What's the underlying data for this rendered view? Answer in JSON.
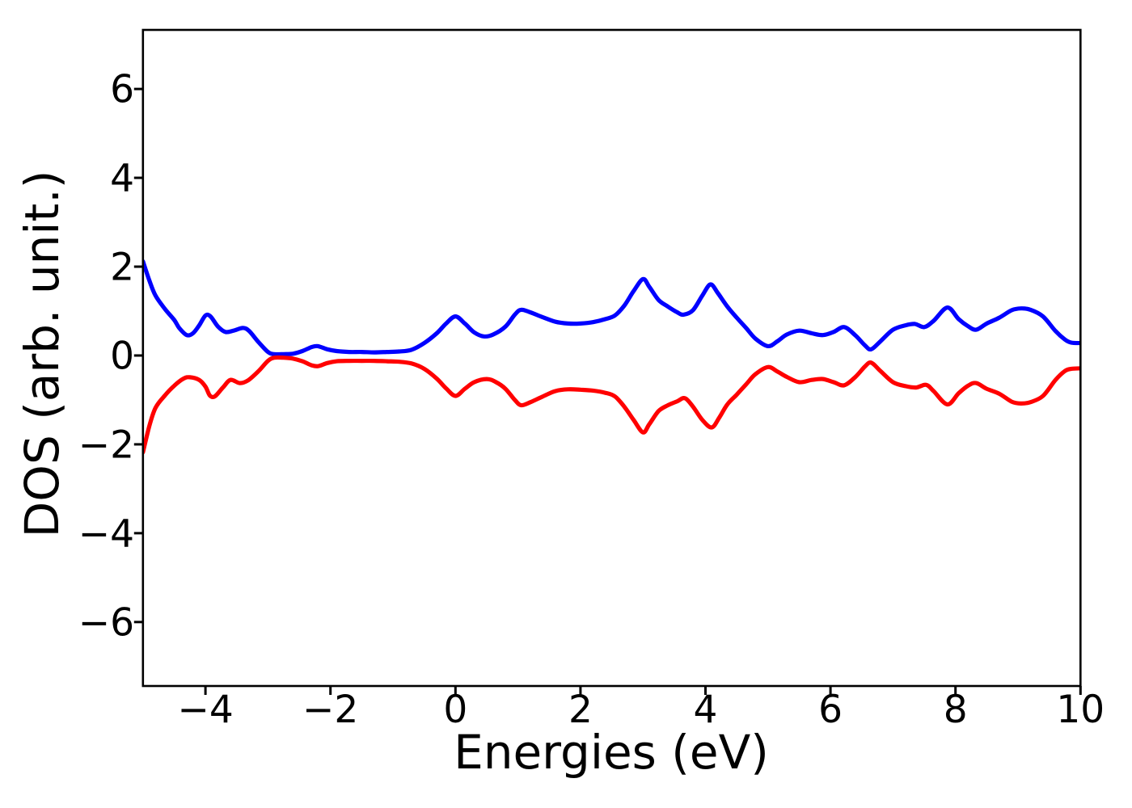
{
  "figure": {
    "background": "#ffffff",
    "spine_color": "#000000",
    "tick_color": "#000000",
    "text_color": "#000000"
  },
  "chart_data": {
    "type": "line",
    "title": "",
    "xlabel": "Energies (eV)",
    "ylabel": "DOS (arb. unit.)",
    "xlim": [
      -5,
      10
    ],
    "ylim": [
      -7.44,
      7.33
    ],
    "grid": false,
    "legend": "none",
    "x_ticks": {
      "values": [
        -4,
        -2,
        0,
        2,
        4,
        6,
        8,
        10
      ],
      "labels": [
        "−4",
        "−2",
        "0",
        "2",
        "4",
        "6",
        "8",
        "10"
      ]
    },
    "y_ticks": {
      "values": [
        -6,
        -4,
        -2,
        0,
        2,
        4,
        6
      ],
      "labels": [
        "−6",
        "−4",
        "−2",
        "0",
        "2",
        "4",
        "6"
      ]
    },
    "series": [
      {
        "name": "blue",
        "color": "#0000ff",
        "x": [
          -5.0,
          -4.9,
          -4.8,
          -4.65,
          -4.5,
          -4.42,
          -4.3,
          -4.2,
          -4.1,
          -4.0,
          -3.92,
          -3.8,
          -3.68,
          -3.55,
          -3.4,
          -3.3,
          -3.15,
          -3.0,
          -2.9,
          -2.75,
          -2.6,
          -2.45,
          -2.3,
          -2.2,
          -2.05,
          -1.9,
          -1.7,
          -1.5,
          -1.3,
          -1.1,
          -0.9,
          -0.7,
          -0.5,
          -0.3,
          -0.15,
          0.0,
          0.15,
          0.3,
          0.45,
          0.6,
          0.8,
          0.95,
          1.05,
          1.2,
          1.4,
          1.6,
          1.8,
          2.0,
          2.2,
          2.4,
          2.55,
          2.7,
          2.85,
          3.0,
          3.1,
          3.25,
          3.4,
          3.55,
          3.65,
          3.8,
          3.95,
          4.08,
          4.2,
          4.35,
          4.5,
          4.65,
          4.8,
          5.0,
          5.15,
          5.3,
          5.5,
          5.7,
          5.88,
          6.05,
          6.22,
          6.4,
          6.55,
          6.65,
          6.8,
          7.0,
          7.2,
          7.35,
          7.5,
          7.65,
          7.87,
          8.05,
          8.2,
          8.33,
          8.5,
          8.7,
          8.9,
          9.05,
          9.2,
          9.4,
          9.6,
          9.75,
          9.85,
          10.0
        ],
        "y": [
          2.12,
          1.7,
          1.35,
          1.05,
          0.8,
          0.62,
          0.46,
          0.5,
          0.68,
          0.9,
          0.88,
          0.65,
          0.53,
          0.56,
          0.62,
          0.55,
          0.3,
          0.08,
          0.03,
          0.03,
          0.04,
          0.1,
          0.19,
          0.21,
          0.14,
          0.1,
          0.08,
          0.08,
          0.07,
          0.08,
          0.09,
          0.13,
          0.28,
          0.5,
          0.72,
          0.88,
          0.72,
          0.52,
          0.43,
          0.47,
          0.65,
          0.92,
          1.03,
          0.97,
          0.86,
          0.76,
          0.72,
          0.72,
          0.75,
          0.82,
          0.9,
          1.12,
          1.45,
          1.72,
          1.55,
          1.25,
          1.1,
          0.97,
          0.92,
          1.02,
          1.35,
          1.6,
          1.4,
          1.1,
          0.85,
          0.62,
          0.38,
          0.21,
          0.32,
          0.47,
          0.56,
          0.5,
          0.46,
          0.53,
          0.64,
          0.45,
          0.23,
          0.14,
          0.32,
          0.58,
          0.68,
          0.71,
          0.64,
          0.78,
          1.08,
          0.82,
          0.66,
          0.58,
          0.72,
          0.85,
          1.02,
          1.06,
          1.03,
          0.88,
          0.55,
          0.36,
          0.29,
          0.28
        ]
      },
      {
        "name": "red",
        "color": "#ff0000",
        "x": [
          -5.0,
          -4.9,
          -4.8,
          -4.65,
          -4.5,
          -4.35,
          -4.25,
          -4.1,
          -4.0,
          -3.93,
          -3.85,
          -3.72,
          -3.6,
          -3.45,
          -3.32,
          -3.15,
          -3.0,
          -2.9,
          -2.75,
          -2.6,
          -2.45,
          -2.3,
          -2.2,
          -2.05,
          -1.9,
          -1.7,
          -1.5,
          -1.3,
          -1.1,
          -0.9,
          -0.7,
          -0.5,
          -0.3,
          -0.15,
          0.0,
          0.15,
          0.3,
          0.5,
          0.65,
          0.8,
          0.95,
          1.05,
          1.2,
          1.4,
          1.6,
          1.8,
          2.0,
          2.2,
          2.4,
          2.55,
          2.7,
          2.85,
          3.0,
          3.1,
          3.25,
          3.4,
          3.55,
          3.67,
          3.8,
          3.95,
          4.1,
          4.22,
          4.35,
          4.5,
          4.65,
          4.8,
          5.0,
          5.15,
          5.3,
          5.5,
          5.7,
          5.88,
          6.05,
          6.22,
          6.4,
          6.55,
          6.65,
          6.8,
          7.0,
          7.2,
          7.37,
          7.53,
          7.65,
          7.87,
          8.05,
          8.2,
          8.33,
          8.5,
          8.7,
          8.9,
          9.05,
          9.2,
          9.4,
          9.6,
          9.75,
          9.85,
          10.0
        ],
        "y": [
          -2.18,
          -1.6,
          -1.18,
          -0.9,
          -0.68,
          -0.52,
          -0.49,
          -0.55,
          -0.7,
          -0.9,
          -0.92,
          -0.72,
          -0.55,
          -0.62,
          -0.56,
          -0.35,
          -0.12,
          -0.05,
          -0.05,
          -0.07,
          -0.13,
          -0.22,
          -0.24,
          -0.17,
          -0.13,
          -0.12,
          -0.12,
          -0.12,
          -0.13,
          -0.14,
          -0.18,
          -0.3,
          -0.52,
          -0.74,
          -0.91,
          -0.75,
          -0.6,
          -0.53,
          -0.6,
          -0.75,
          -1.0,
          -1.12,
          -1.05,
          -0.92,
          -0.8,
          -0.76,
          -0.77,
          -0.79,
          -0.84,
          -0.92,
          -1.15,
          -1.45,
          -1.73,
          -1.55,
          -1.25,
          -1.12,
          -1.03,
          -0.96,
          -1.15,
          -1.45,
          -1.62,
          -1.4,
          -1.1,
          -0.88,
          -0.65,
          -0.42,
          -0.26,
          -0.36,
          -0.48,
          -0.6,
          -0.55,
          -0.53,
          -0.6,
          -0.67,
          -0.48,
          -0.25,
          -0.16,
          -0.35,
          -0.6,
          -0.69,
          -0.72,
          -0.66,
          -0.8,
          -1.1,
          -0.85,
          -0.68,
          -0.62,
          -0.75,
          -0.86,
          -1.04,
          -1.08,
          -1.05,
          -0.91,
          -0.55,
          -0.35,
          -0.3,
          -0.29
        ]
      }
    ]
  }
}
